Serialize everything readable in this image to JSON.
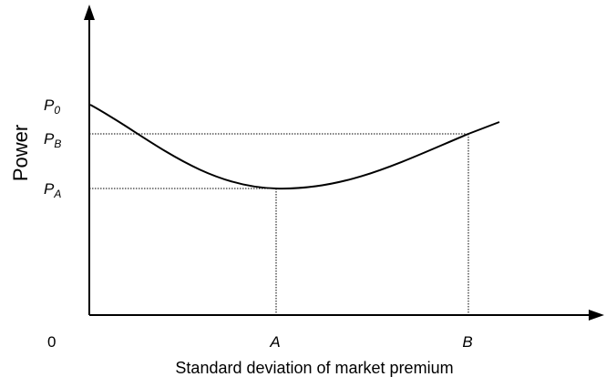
{
  "diagram": {
    "y_axis_label": "Power",
    "x_axis_label": "Standard deviation of market premium",
    "origin_label": "0",
    "y_ticks": {
      "p0": {
        "base": "P",
        "sub": "0"
      },
      "pb": {
        "base": "P",
        "sub": "B"
      },
      "pa": {
        "base": "P",
        "sub": "A"
      }
    },
    "x_ticks": {
      "a": "A",
      "b": "B"
    },
    "colors": {
      "ink": "#000000",
      "background": "#ffffff"
    }
  }
}
